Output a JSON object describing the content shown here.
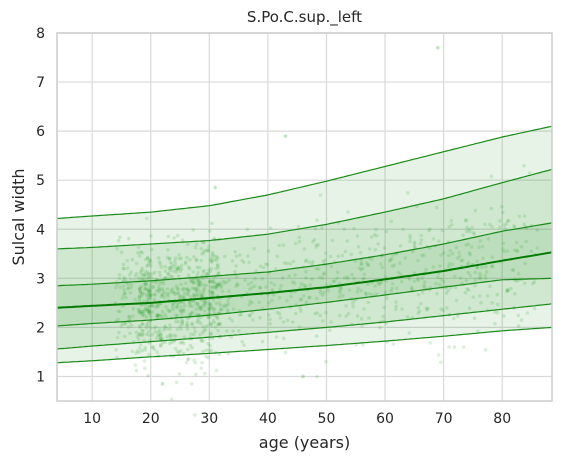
{
  "chart_data": {
    "type": "line",
    "title": "S.Po.C.sup._left",
    "xlabel": "age (years)",
    "ylabel": "Sulcal width",
    "xlim": [
      4,
      88.5
    ],
    "ylim": [
      0.5,
      8
    ],
    "x_ticks": [
      10,
      20,
      30,
      40,
      50,
      60,
      70,
      80
    ],
    "y_ticks": [
      1,
      2,
      3,
      4,
      5,
      6,
      7,
      8
    ],
    "grid": true,
    "line_color": "#1a8a1a",
    "median_color": "#007a00",
    "band_color": "#2e9e2e",
    "scatter_color": "#3aa83a",
    "x": [
      4,
      10,
      20,
      30,
      40,
      50,
      60,
      70,
      80,
      88.5
    ],
    "series": [
      {
        "values": [
          1.28,
          1.32,
          1.4,
          1.47,
          1.55,
          1.63,
          1.72,
          1.82,
          1.93,
          2.0
        ]
      },
      {
        "values": [
          1.56,
          1.62,
          1.71,
          1.8,
          1.9,
          2.0,
          2.11,
          2.24,
          2.37,
          2.48
        ]
      },
      {
        "values": [
          2.03,
          2.08,
          2.15,
          2.25,
          2.37,
          2.51,
          2.66,
          2.82,
          2.97,
          3.0
        ]
      },
      {
        "values": [
          2.4,
          2.44,
          2.5,
          2.6,
          2.7,
          2.82,
          2.98,
          3.15,
          3.36,
          3.53
        ]
      },
      {
        "values": [
          2.85,
          2.88,
          2.95,
          3.04,
          3.13,
          3.29,
          3.48,
          3.7,
          3.96,
          4.13
        ]
      },
      {
        "values": [
          3.6,
          3.63,
          3.7,
          3.77,
          3.9,
          4.1,
          4.35,
          4.62,
          4.95,
          5.22
        ]
      },
      {
        "values": [
          4.22,
          4.27,
          4.35,
          4.48,
          4.7,
          4.98,
          5.28,
          5.58,
          5.88,
          6.1
        ]
      }
    ],
    "median_index": 3,
    "bands": [
      [
        0,
        6
      ],
      [
        1,
        5
      ],
      [
        2,
        4
      ]
    ],
    "band_opacity": [
      0.12,
      0.12,
      0.12
    ],
    "scatter": {
      "point_count": 1300,
      "outliers": [
        [
          69,
          7.7
        ],
        [
          43,
          5.9
        ],
        [
          31,
          4.85
        ],
        [
          22,
          0.85
        ],
        [
          46,
          1.0
        ]
      ]
    }
  }
}
